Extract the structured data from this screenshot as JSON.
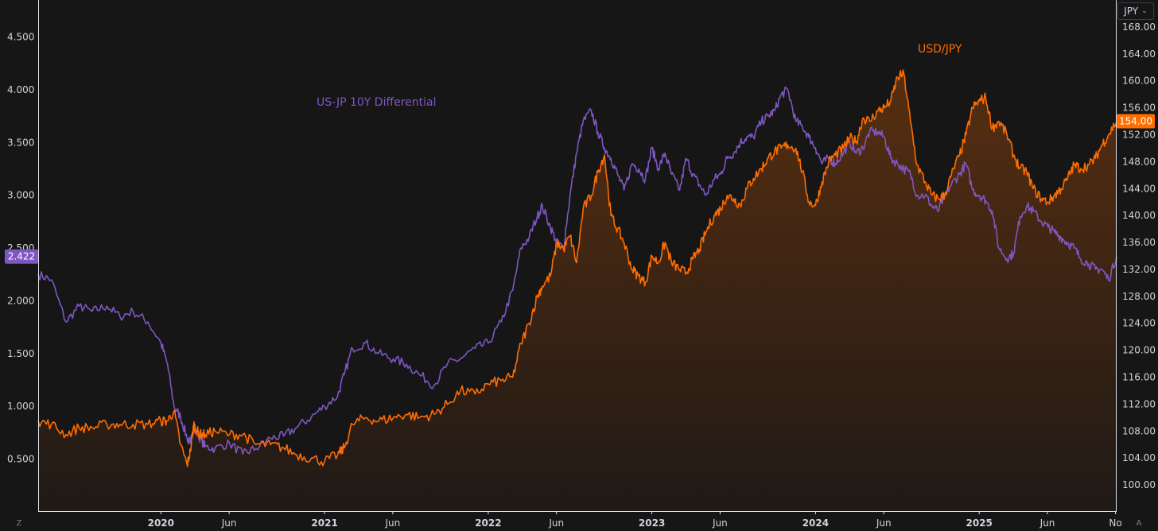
{
  "chart_data": {
    "type": "line",
    "x_axis": {
      "labels": [
        "2020",
        "Jun",
        "2021",
        "Jun",
        "2022",
        "Jun",
        "2023",
        "Jun",
        "2024",
        "Jun",
        "2025",
        "Jun",
        "No"
      ],
      "label_times": [
        2020.0,
        2020.417,
        2021.0,
        2021.417,
        2022.0,
        2022.417,
        2023.0,
        2023.417,
        2024.0,
        2024.417,
        2025.0,
        2025.417,
        2025.833
      ],
      "range": [
        2019.25,
        2025.84
      ]
    },
    "left_axis": {
      "ticks": [
        "0.500",
        "1.000",
        "1.500",
        "2.000",
        "2.500",
        "3.000",
        "3.500",
        "4.000",
        "4.500"
      ],
      "range": [
        0.0,
        4.85
      ]
    },
    "right_axis": {
      "unit": "JPY",
      "ticks": [
        "100.00",
        "104.00",
        "108.00",
        "112.00",
        "116.00",
        "120.00",
        "124.00",
        "128.00",
        "132.00",
        "136.00",
        "140.00",
        "144.00",
        "148.00",
        "152.00",
        "156.00",
        "160.00",
        "164.00",
        "168.00"
      ],
      "range": [
        96.0,
        172.0
      ]
    },
    "series": [
      {
        "name": "US-JP 10Y Differential",
        "axis": "left",
        "color": "#7e57c2",
        "last_value_label": "2.422",
        "x": [
          2019.25,
          2019.33,
          2019.42,
          2019.5,
          2019.58,
          2019.67,
          2019.75,
          2019.83,
          2019.92,
          2020.0,
          2020.04,
          2020.08,
          2020.12,
          2020.16,
          2020.18,
          2020.2,
          2020.22,
          2020.24,
          2020.27,
          2020.33,
          2020.42,
          2020.5,
          2020.58,
          2020.67,
          2020.75,
          2020.83,
          2020.92,
          2021.0,
          2021.08,
          2021.12,
          2021.17,
          2021.25,
          2021.33,
          2021.42,
          2021.5,
          2021.58,
          2021.67,
          2021.75,
          2021.83,
          2021.92,
          2022.0,
          2022.08,
          2022.15,
          2022.2,
          2022.25,
          2022.3,
          2022.33,
          2022.38,
          2022.42,
          2022.46,
          2022.5,
          2022.54,
          2022.58,
          2022.63,
          2022.67,
          2022.71,
          2022.75,
          2022.79,
          2022.83,
          2022.88,
          2022.92,
          2022.96,
          2023.0,
          2023.04,
          2023.08,
          2023.12,
          2023.17,
          2023.21,
          2023.25,
          2023.29,
          2023.33,
          2023.38,
          2023.42,
          2023.46,
          2023.5,
          2023.54,
          2023.58,
          2023.62,
          2023.67,
          2023.71,
          2023.75,
          2023.79,
          2023.83,
          2023.88,
          2023.92,
          2023.96,
          2024.0,
          2024.04,
          2024.08,
          2024.12,
          2024.17,
          2024.21,
          2024.25,
          2024.29,
          2024.33,
          2024.38,
          2024.42,
          2024.46,
          2024.5,
          2024.54,
          2024.58,
          2024.62,
          2024.67,
          2024.71,
          2024.75,
          2024.79,
          2024.83,
          2024.88,
          2024.92,
          2024.96,
          2025.0,
          2025.04,
          2025.08,
          2025.12,
          2025.17,
          2025.21,
          2025.25,
          2025.29,
          2025.33,
          2025.38,
          2025.42,
          2025.46,
          2025.5,
          2025.54,
          2025.58,
          2025.62,
          2025.67,
          2025.71,
          2025.75,
          2025.79,
          2025.84
        ],
        "y": [
          2.25,
          2.2,
          1.8,
          1.95,
          1.9,
          1.95,
          1.85,
          1.9,
          1.8,
          1.6,
          1.4,
          1.0,
          0.9,
          0.7,
          0.65,
          0.8,
          0.75,
          0.7,
          0.62,
          0.6,
          0.65,
          0.55,
          0.6,
          0.7,
          0.72,
          0.8,
          0.9,
          1.0,
          1.1,
          1.3,
          1.55,
          1.6,
          1.5,
          1.45,
          1.4,
          1.3,
          1.2,
          1.4,
          1.45,
          1.55,
          1.6,
          1.8,
          2.1,
          2.5,
          2.6,
          2.8,
          2.9,
          2.7,
          2.55,
          2.5,
          3.0,
          3.4,
          3.7,
          3.8,
          3.6,
          3.45,
          3.35,
          3.2,
          3.05,
          3.3,
          3.25,
          3.15,
          3.45,
          3.25,
          3.4,
          3.2,
          3.05,
          3.35,
          3.2,
          3.1,
          3.0,
          3.15,
          3.2,
          3.35,
          3.4,
          3.5,
          3.55,
          3.55,
          3.7,
          3.75,
          3.8,
          3.95,
          4.0,
          3.7,
          3.65,
          3.55,
          3.45,
          3.3,
          3.35,
          3.3,
          3.4,
          3.5,
          3.4,
          3.45,
          3.6,
          3.6,
          3.55,
          3.35,
          3.3,
          3.25,
          3.2,
          3.0,
          3.0,
          2.9,
          2.85,
          3.0,
          3.1,
          3.2,
          3.3,
          3.05,
          3.0,
          2.95,
          2.85,
          2.5,
          2.4,
          2.45,
          2.8,
          2.9,
          2.85,
          2.75,
          2.7,
          2.65,
          2.6,
          2.55,
          2.5,
          2.4,
          2.35,
          2.3,
          2.3,
          2.2,
          2.42
        ]
      },
      {
        "name": "USD/JPY",
        "axis": "right",
        "color": "#ff6d00",
        "last_value_label": "154.00",
        "x": [
          2019.25,
          2019.33,
          2019.42,
          2019.5,
          2019.58,
          2019.67,
          2019.75,
          2019.83,
          2019.92,
          2020.0,
          2020.04,
          2020.08,
          2020.12,
          2020.16,
          2020.18,
          2020.2,
          2020.22,
          2020.24,
          2020.27,
          2020.33,
          2020.42,
          2020.5,
          2020.58,
          2020.67,
          2020.75,
          2020.83,
          2020.92,
          2021.0,
          2021.08,
          2021.12,
          2021.17,
          2021.25,
          2021.33,
          2021.42,
          2021.5,
          2021.58,
          2021.67,
          2021.75,
          2021.83,
          2021.92,
          2022.0,
          2022.08,
          2022.15,
          2022.2,
          2022.25,
          2022.3,
          2022.33,
          2022.38,
          2022.42,
          2022.46,
          2022.5,
          2022.54,
          2022.58,
          2022.63,
          2022.67,
          2022.71,
          2022.75,
          2022.79,
          2022.83,
          2022.88,
          2022.92,
          2022.96,
          2023.0,
          2023.04,
          2023.08,
          2023.12,
          2023.17,
          2023.21,
          2023.25,
          2023.29,
          2023.33,
          2023.38,
          2023.42,
          2023.46,
          2023.5,
          2023.54,
          2023.58,
          2023.62,
          2023.67,
          2023.71,
          2023.75,
          2023.79,
          2023.83,
          2023.88,
          2023.92,
          2023.96,
          2024.0,
          2024.04,
          2024.08,
          2024.12,
          2024.17,
          2024.21,
          2024.25,
          2024.29,
          2024.33,
          2024.38,
          2024.42,
          2024.46,
          2024.5,
          2024.54,
          2024.58,
          2024.62,
          2024.67,
          2024.71,
          2024.75,
          2024.79,
          2024.83,
          2024.88,
          2024.92,
          2024.96,
          2025.0,
          2025.04,
          2025.08,
          2025.12,
          2025.17,
          2025.21,
          2025.25,
          2025.29,
          2025.33,
          2025.38,
          2025.42,
          2025.46,
          2025.5,
          2025.54,
          2025.58,
          2025.62,
          2025.67,
          2025.71,
          2025.75,
          2025.79,
          2025.84
        ],
        "y": [
          109.5,
          109.0,
          107.5,
          108.5,
          108.5,
          109.0,
          109.0,
          109.0,
          109.0,
          109.5,
          109.5,
          111.0,
          106.0,
          103.0,
          105.0,
          109.0,
          108.0,
          107.5,
          107.5,
          108.0,
          107.5,
          107.5,
          106.0,
          106.0,
          105.5,
          104.5,
          104.0,
          103.5,
          104.5,
          105.5,
          109.0,
          110.0,
          109.5,
          110.0,
          110.5,
          110.0,
          110.5,
          112.0,
          114.0,
          113.5,
          115.0,
          115.5,
          116.0,
          121.0,
          124.0,
          128.0,
          129.5,
          131.0,
          136.0,
          135.0,
          137.0,
          133.0,
          141.0,
          143.0,
          146.5,
          149.0,
          140.0,
          138.0,
          136.0,
          132.0,
          131.0,
          130.0,
          134.0,
          133.0,
          136.0,
          133.0,
          132.0,
          131.5,
          133.5,
          135.0,
          137.5,
          140.0,
          141.0,
          143.0,
          142.5,
          141.5,
          144.0,
          145.5,
          147.0,
          148.5,
          149.5,
          150.0,
          150.5,
          150.0,
          146.5,
          142.0,
          141.5,
          145.0,
          148.0,
          149.0,
          150.0,
          151.5,
          151.0,
          154.5,
          154.0,
          155.5,
          156.0,
          157.0,
          160.5,
          161.0,
          154.0,
          147.5,
          145.0,
          143.0,
          142.5,
          143.0,
          146.0,
          149.0,
          152.0,
          156.0,
          157.0,
          157.5,
          153.0,
          154.0,
          152.0,
          149.0,
          147.0,
          146.5,
          144.0,
          142.5,
          142.0,
          143.0,
          144.0,
          145.5,
          147.5,
          147.0,
          147.5,
          148.5,
          150.5,
          152.0,
          154.0
        ]
      }
    ],
    "annotations": [
      {
        "text": "US-JP 10Y Differential",
        "color": "#7e57c2"
      },
      {
        "text": "USD/JPY",
        "color": "#ff6d00"
      }
    ],
    "grid": false,
    "fill_under": "USD/JPY"
  },
  "ui": {
    "currency_selector": {
      "label": "JPY",
      "chevron": "chevron-down-icon"
    },
    "bottom_left_button": "Z",
    "bottom_right_button": "A",
    "colors": {
      "background": "#161617",
      "axis_text": "#d1d4dc",
      "axis_line": "#e0e3eb",
      "purple": "#7e57c2",
      "orange": "#ff6d00"
    }
  }
}
